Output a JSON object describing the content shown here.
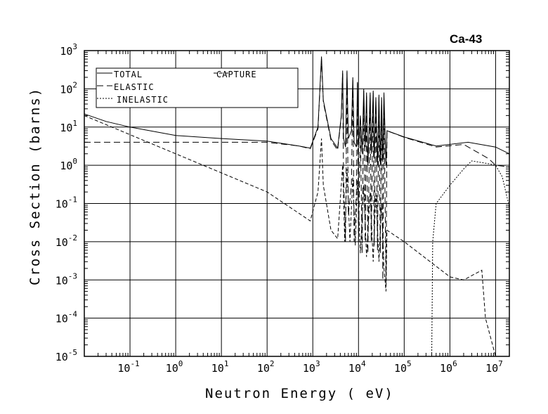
{
  "chart_data": {
    "type": "line",
    "title": "Ca-43",
    "xlabel": "Neutron Energy ( eV)",
    "ylabel": "Cross Section (barns)",
    "xscale": "log",
    "yscale": "log",
    "xlim": [
      0.01,
      20000000
    ],
    "ylim": [
      1e-05,
      1000
    ],
    "xtick_exponents": [
      "-1",
      "0",
      "1",
      "2",
      "3",
      "4",
      "5",
      "6",
      "7"
    ],
    "ytick_exponents": [
      "3",
      "2",
      "1",
      "0",
      "-1",
      "-2",
      "-3",
      "-4",
      "-5"
    ],
    "tick_base": "10",
    "grid": true,
    "legend_position": "top-left",
    "series": [
      {
        "name": "TOTAL",
        "style": "solid",
        "points": [
          [
            0.01,
            22
          ],
          [
            0.03,
            14
          ],
          [
            0.1,
            10
          ],
          [
            1,
            6
          ],
          [
            10,
            5
          ],
          [
            100,
            4.3
          ],
          [
            500,
            3.2
          ],
          [
            880,
            2.8
          ],
          [
            1300,
            10
          ],
          [
            1550,
            700
          ],
          [
            1700,
            50
          ],
          [
            2500,
            5
          ],
          [
            3500,
            2.8
          ],
          [
            4200,
            20
          ],
          [
            4500,
            300
          ],
          [
            4700,
            5
          ],
          [
            5200,
            3
          ],
          [
            5600,
            300
          ],
          [
            6000,
            5
          ],
          [
            7000,
            8
          ],
          [
            7500,
            200
          ],
          [
            8000,
            4
          ],
          [
            9000,
            3
          ],
          [
            9500,
            150
          ],
          [
            10000,
            3
          ],
          [
            11000,
            20
          ],
          [
            12000,
            2
          ],
          [
            13000,
            100
          ],
          [
            14000,
            3
          ],
          [
            15000,
            80
          ],
          [
            16000,
            1
          ],
          [
            18000,
            80
          ],
          [
            19000,
            2
          ],
          [
            21000,
            90
          ],
          [
            22000,
            1.5
          ],
          [
            24000,
            60
          ],
          [
            26000,
            1
          ],
          [
            28000,
            70
          ],
          [
            30000,
            1
          ],
          [
            32000,
            60
          ],
          [
            34000,
            1.2
          ],
          [
            36000,
            80
          ],
          [
            40000,
            1
          ],
          [
            42000,
            8
          ],
          [
            100000,
            5.5
          ],
          [
            500000,
            3.2
          ],
          [
            2500000,
            4
          ],
          [
            10000000,
            3
          ],
          [
            20000000,
            2
          ]
        ]
      },
      {
        "name": "ELASTIC",
        "style": "longdash",
        "points": [
          [
            0.01,
            4
          ],
          [
            1,
            4
          ],
          [
            100,
            4
          ],
          [
            500,
            3.2
          ],
          [
            880,
            2.7
          ],
          [
            1300,
            9
          ],
          [
            1550,
            600
          ],
          [
            1700,
            45
          ],
          [
            2500,
            4.5
          ],
          [
            3500,
            2.5
          ],
          [
            4200,
            18
          ],
          [
            4500,
            280
          ],
          [
            4700,
            0.5
          ],
          [
            5200,
            0.01
          ],
          [
            5600,
            280
          ],
          [
            6000,
            0.05
          ],
          [
            7000,
            0.3
          ],
          [
            7500,
            180
          ],
          [
            8000,
            0.01
          ],
          [
            9000,
            0.2
          ],
          [
            9500,
            140
          ],
          [
            10000,
            0.01
          ],
          [
            11000,
            10
          ],
          [
            12000,
            0.005
          ],
          [
            13000,
            90
          ],
          [
            14000,
            0.01
          ],
          [
            15000,
            70
          ],
          [
            16000,
            0.005
          ],
          [
            18000,
            70
          ],
          [
            19000,
            0.01
          ],
          [
            21000,
            80
          ],
          [
            22000,
            0.008
          ],
          [
            24000,
            50
          ],
          [
            26000,
            0.006
          ],
          [
            28000,
            60
          ],
          [
            30000,
            0.005
          ],
          [
            32000,
            50
          ],
          [
            34000,
            0.001
          ],
          [
            36000,
            70
          ],
          [
            40000,
            0.0007
          ],
          [
            42000,
            8
          ],
          [
            100000,
            5.4
          ],
          [
            500000,
            3
          ],
          [
            2000000,
            3.5
          ],
          [
            7000000,
            1.5
          ],
          [
            10000000,
            1
          ],
          [
            20000000,
            0.9
          ]
        ]
      },
      {
        "name": "CAPTURE",
        "style": "dash",
        "points": [
          [
            0.01,
            20
          ],
          [
            1,
            2
          ],
          [
            100,
            0.2
          ],
          [
            880,
            0.035
          ],
          [
            1300,
            0.2
          ],
          [
            1550,
            5
          ],
          [
            1700,
            0.3
          ],
          [
            2500,
            0.02
          ],
          [
            3500,
            0.012
          ],
          [
            4500,
            1
          ],
          [
            5000,
            0.01
          ],
          [
            5600,
            0.8
          ],
          [
            6500,
            0.01
          ],
          [
            7500,
            0.5
          ],
          [
            8500,
            0.008
          ],
          [
            9500,
            0.4
          ],
          [
            11000,
            0.005
          ],
          [
            13000,
            0.3
          ],
          [
            15000,
            0.004
          ],
          [
            18000,
            0.2
          ],
          [
            21000,
            0.003
          ],
          [
            24000,
            0.2
          ],
          [
            28000,
            0.003
          ],
          [
            32000,
            0.1
          ],
          [
            36000,
            0.002
          ],
          [
            40000,
            0.0005
          ],
          [
            42000,
            0.02
          ],
          [
            100000,
            0.01
          ],
          [
            1000000,
            0.0012
          ],
          [
            2000000,
            0.001
          ],
          [
            5000000,
            0.0018
          ],
          [
            6000000,
            0.0001
          ],
          [
            10000000,
            1e-05
          ]
        ]
      },
      {
        "name": "INELASTIC",
        "style": "dot",
        "points": [
          [
            400000,
            1e-05
          ],
          [
            420000,
            0.01
          ],
          [
            500000,
            0.1
          ],
          [
            1000000,
            0.3
          ],
          [
            2000000,
            0.8
          ],
          [
            3000000,
            1.3
          ],
          [
            7000000,
            1.1
          ],
          [
            10000000,
            1
          ],
          [
            14000000,
            0.5
          ],
          [
            20000000,
            0.08
          ]
        ]
      }
    ]
  }
}
